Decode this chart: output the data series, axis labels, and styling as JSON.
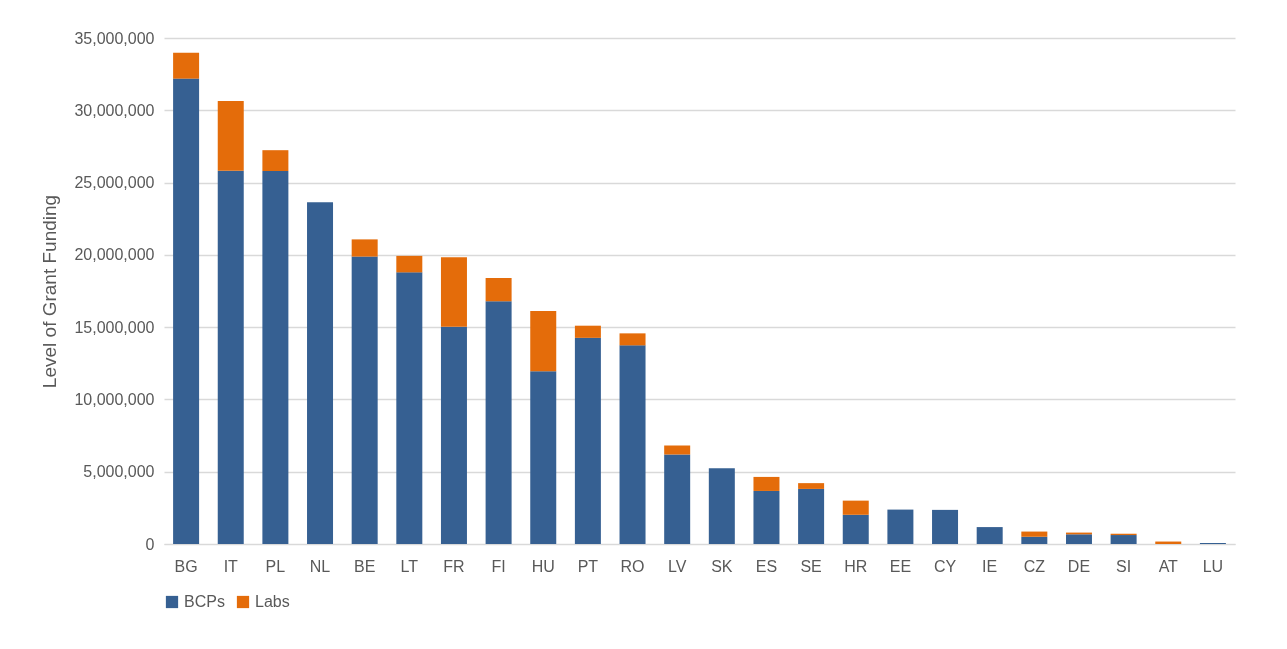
{
  "chart_data": {
    "type": "bar",
    "ylabel": "Level of Grant Funding",
    "stacked": true,
    "categories": [
      "BG",
      "IT",
      "PL",
      "NL",
      "BE",
      "LT",
      "FR",
      "FI",
      "HU",
      "PT",
      "RO",
      "LV",
      "SK",
      "ES",
      "SE",
      "HR",
      "EE",
      "CY",
      "IE",
      "CZ",
      "DE",
      "SI",
      "AT",
      "LU"
    ],
    "series": [
      {
        "name": "BCPs",
        "color": "#366092",
        "values": [
          32190000,
          25810000,
          25800000,
          23640000,
          19880000,
          18790000,
          15020000,
          16790000,
          11950000,
          14260000,
          13740000,
          6190000,
          5240000,
          3670000,
          3810000,
          2020000,
          2380000,
          2360000,
          1170000,
          500000,
          670000,
          620000,
          0,
          70000
        ]
      },
      {
        "name": "Labs",
        "color": "#e46c0a",
        "values": [
          1790000,
          4830000,
          1440000,
          0,
          1190000,
          1140000,
          4810000,
          1610000,
          4170000,
          840000,
          830000,
          620000,
          0,
          970000,
          400000,
          980000,
          0,
          0,
          0,
          360000,
          120000,
          90000,
          170000,
          0
        ]
      }
    ],
    "ylim": [
      0,
      35000000
    ],
    "yticks": [
      0,
      {
        "value": 5000000,
        "label": "5,000,000"
      },
      {
        "value": 10000000,
        "label": "10,000,000"
      },
      {
        "value": 15000000,
        "label": "15,000,000"
      },
      {
        "value": 20000000,
        "label": "20,000,000"
      },
      {
        "value": 25000000,
        "label": "25,000,000"
      },
      {
        "value": 30000000,
        "label": "30,000,000"
      },
      {
        "value": 35000000,
        "label": "35,000,000"
      }
    ],
    "grid": "y",
    "legend": "bottom"
  }
}
